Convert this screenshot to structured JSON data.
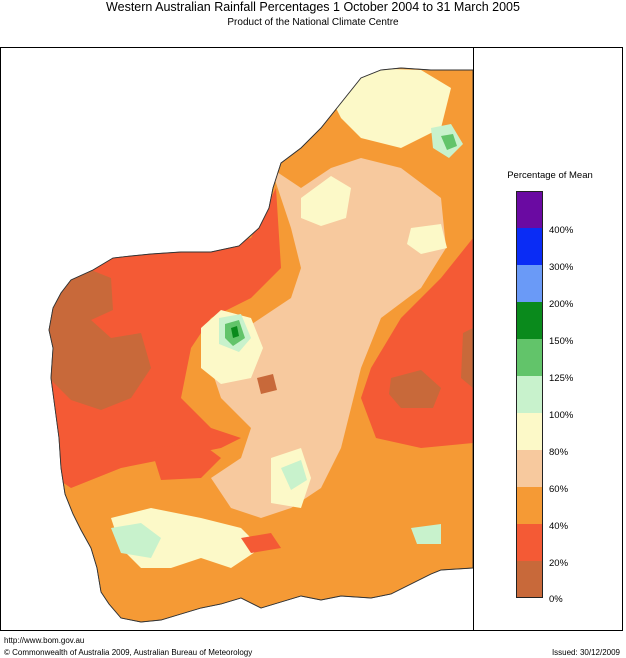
{
  "header": {
    "title": "Western Australian Rainfall Percentages 1 October 2004 to 31 March 2005",
    "subtitle": "Product of the National Climate Centre"
  },
  "legend": {
    "title": "Percentage of Mean",
    "bands": [
      {
        "color": "#6a0aa2",
        "range": "above 400%"
      },
      {
        "color": "#0a2cf5",
        "range": "300-400%"
      },
      {
        "color": "#6a9af7",
        "range": "200-300%"
      },
      {
        "color": "#0a8a1c",
        "range": "150-200%"
      },
      {
        "color": "#62c46a",
        "range": "125-150%"
      },
      {
        "color": "#c8f2cc",
        "range": "100-125%"
      },
      {
        "color": "#fcf9c8",
        "range": "80-100%"
      },
      {
        "color": "#f7c99e",
        "range": "60-80%"
      },
      {
        "color": "#f59a35",
        "range": "40-60%"
      },
      {
        "color": "#f45a35",
        "range": "20-40%"
      },
      {
        "color": "#c8693a",
        "range": "0-20%"
      }
    ],
    "labels": [
      "400%",
      "300%",
      "200%",
      "150%",
      "125%",
      "100%",
      "80%",
      "60%",
      "40%",
      "20%",
      "0%"
    ]
  },
  "map_colors": {
    "water": "#ffffff",
    "c0_20": "#c8693a",
    "c20_40": "#f45a35",
    "c40_60": "#f59a35",
    "c60_80": "#f7c99e",
    "c80_100": "#fcf9c8",
    "c100_125": "#c8f2cc",
    "c125_150": "#62c46a",
    "c150_200": "#0a8a1c"
  },
  "footer": {
    "url": "http://www.bom.gov.au",
    "copyright": "© Commonwealth of Australia 2009, Australian Bureau of Meteorology",
    "issued": "Issued: 30/12/2009"
  }
}
